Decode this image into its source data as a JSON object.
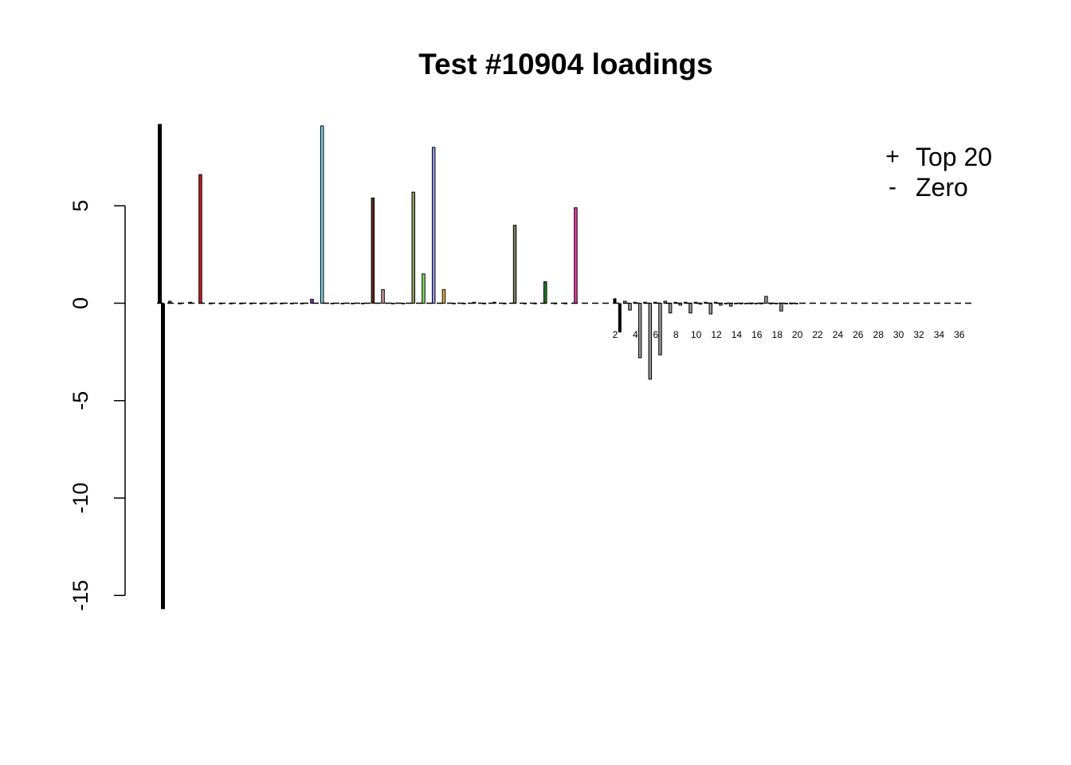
{
  "chart_data": {
    "type": "bar",
    "title": "Test #10904 loadings",
    "xlabel": "",
    "ylabel": "",
    "ylim": [
      -15.7,
      9.2
    ],
    "yticks": [
      5,
      0,
      -5,
      -10,
      -15
    ],
    "yticklabels": [
      "5",
      "0",
      "-5",
      "-10",
      "-15"
    ],
    "grid": false,
    "zero_line": "dashed",
    "legend": {
      "placement": "top-right",
      "entries": [
        {
          "symbol": "+",
          "label": "Top 20"
        },
        {
          "symbol": "-",
          "label": "Zero"
        }
      ]
    },
    "series": [
      {
        "values": [
          9.2,
          0.1,
          0.0,
          0.05,
          6.6,
          0.0,
          0.0,
          0.0,
          0.0,
          0.0,
          0.0,
          0.0,
          0.0,
          0.0,
          0.0,
          0.2,
          9.1,
          0.0,
          0.0,
          0.0,
          0.0,
          5.4,
          0.7,
          0.0,
          0.0,
          5.7,
          1.5,
          8.0,
          0.7,
          0.0,
          0.0,
          0.05,
          0.0,
          0.05,
          0.0,
          4.0,
          0.0,
          0.0,
          1.1,
          0.0,
          0.0,
          4.9
        ],
        "colors": [
          "#000000",
          "#555555",
          "#555555",
          "#555555",
          "#d21a1a",
          "#555555",
          "#555555",
          "#555555",
          "#555555",
          "#555555",
          "#555555",
          "#555555",
          "#555555",
          "#555555",
          "#555555",
          "#8a2be2",
          "#7fd4ea",
          "#555555",
          "#555555",
          "#555555",
          "#555555",
          "#5a2a1a",
          "#c79aa0",
          "#555555",
          "#555555",
          "#8fa060",
          "#80e060",
          "#9a9aee",
          "#e8b040",
          "#555555",
          "#555555",
          "#555555",
          "#555555",
          "#555555",
          "#555555",
          "#808060",
          "#555555",
          "#555555",
          "#2a7a2a",
          "#555555",
          "#555555",
          "#ee3aa8"
        ]
      },
      {
        "values": [
          -15.7
        ],
        "colors": [
          "#000000"
        ]
      },
      {
        "x": [
          1,
          2,
          3,
          4,
          5,
          6,
          7,
          8,
          9,
          10,
          11,
          12,
          13,
          14,
          15,
          16,
          17,
          18,
          19,
          20,
          21,
          22,
          23,
          24,
          25,
          26,
          27,
          28,
          29,
          30,
          31,
          32,
          33,
          34,
          35,
          36,
          37
        ],
        "values": [
          0.25,
          -1.5,
          0.1,
          -0.35,
          0.05,
          -2.8,
          0.05,
          -3.9,
          0.05,
          -2.65,
          0.1,
          -0.5,
          0.05,
          -0.1,
          0.05,
          -0.5,
          0.05,
          -0.05,
          0.05,
          -0.55,
          0.05,
          -0.1,
          0.0,
          -0.15,
          0.0,
          0.0,
          0.0,
          0.0,
          0.0,
          0.0,
          0.35,
          0.0,
          0.0,
          -0.4,
          0.0,
          0.0,
          0.0
        ],
        "colors": [
          "#000000",
          "#000000",
          "#999999",
          "#999999",
          "#999999",
          "#999999",
          "#999999",
          "#999999",
          "#999999",
          "#999999",
          "#999999",
          "#999999",
          "#999999",
          "#999999",
          "#999999",
          "#999999",
          "#999999",
          "#999999",
          "#999999",
          "#999999",
          "#999999",
          "#999999",
          "#999999",
          "#999999",
          "#999999",
          "#999999",
          "#999999",
          "#999999",
          "#999999",
          "#999999",
          "#999999",
          "#999999",
          "#999999",
          "#999999",
          "#999999",
          "#999999",
          "#999999"
        ],
        "tick_labels": [
          "2",
          "4",
          "6",
          "8",
          "10",
          "12",
          "14",
          "16",
          "18",
          "20",
          "22",
          "24",
          "26",
          "28",
          "30",
          "32",
          "34",
          "36"
        ]
      }
    ]
  }
}
